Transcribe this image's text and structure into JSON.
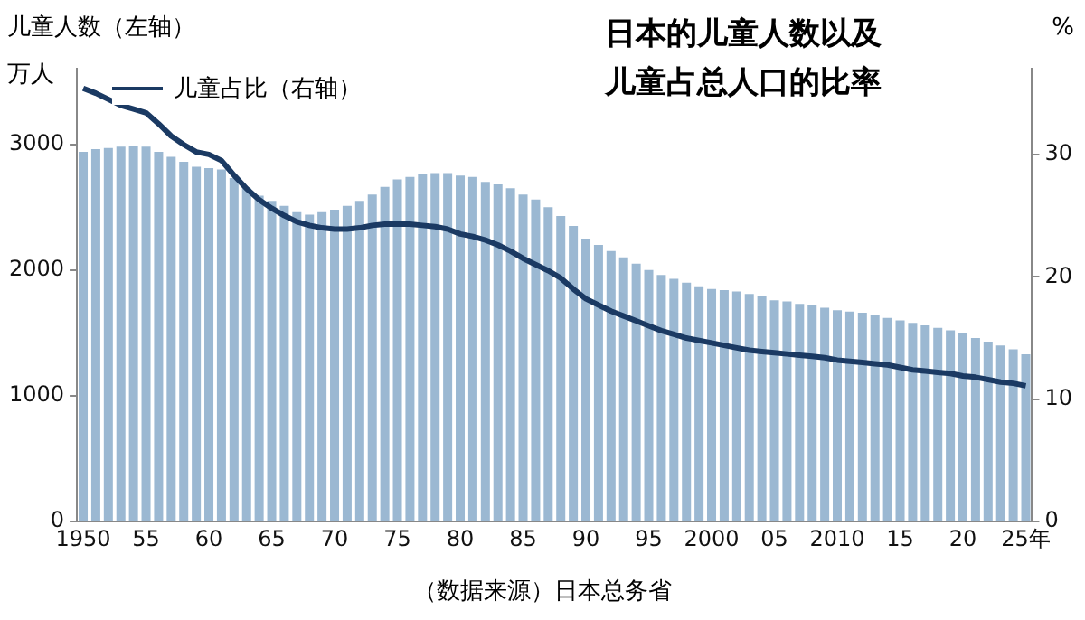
{
  "chart_data": {
    "type": "bar",
    "title": "日本的儿童人数以及儿童占总人口的比率",
    "ylabel": "儿童人数（左轴）",
    "y2label": "%",
    "annotations": [
      "万人",
      "（数据来源）日本总务省"
    ],
    "categories": [
      "1950",
      null,
      null,
      null,
      null,
      "55",
      null,
      null,
      null,
      null,
      "60",
      null,
      null,
      null,
      null,
      "65",
      null,
      null,
      null,
      null,
      "70",
      null,
      null,
      null,
      null,
      "75",
      null,
      null,
      null,
      null,
      "80",
      null,
      null,
      null,
      null,
      "85",
      null,
      null,
      null,
      null,
      "90",
      null,
      null,
      null,
      null,
      "95",
      null,
      null,
      null,
      null,
      "2000",
      null,
      null,
      null,
      null,
      "05",
      null,
      null,
      null,
      null,
      "2010",
      null,
      null,
      null,
      null,
      "15",
      null,
      null,
      null,
      null,
      "20",
      null,
      null,
      null,
      null,
      "25年"
    ],
    "series": [
      {
        "color": "#9bb8d2",
        "values": [
          2940,
          2960,
          2970,
          2980,
          2990,
          2980,
          2940,
          2900,
          2860,
          2820,
          2810,
          2800,
          2730,
          2650,
          2590,
          2550,
          2510,
          2460,
          2440,
          2460,
          2480,
          2510,
          2550,
          2600,
          2660,
          2720,
          2740,
          2760,
          2770,
          2770,
          2750,
          2740,
          2700,
          2680,
          2650,
          2600,
          2560,
          2500,
          2430,
          2350,
          2250,
          2200,
          2150,
          2100,
          2050,
          2000,
          1960,
          1930,
          1900,
          1870,
          1850,
          1840,
          1830,
          1810,
          1790,
          1760,
          1750,
          1730,
          1720,
          1700,
          1680,
          1670,
          1660,
          1640,
          1620,
          1600,
          1580,
          1560,
          1540,
          1520,
          1500,
          1460,
          1430,
          1400,
          1370,
          1330
        ]
      },
      {
        "type": "line",
        "name": "儿童占比（右轴）",
        "color": "#1b3a63",
        "axis": "y2",
        "values": [
          35.4,
          35.0,
          34.5,
          34.0,
          33.7,
          33.4,
          32.5,
          31.5,
          30.8,
          30.2,
          30.0,
          29.5,
          28.3,
          27.2,
          26.3,
          25.6,
          25.0,
          24.5,
          24.2,
          24.0,
          23.9,
          23.9,
          24.0,
          24.2,
          24.3,
          24.3,
          24.3,
          24.2,
          24.1,
          23.9,
          23.5,
          23.3,
          23.0,
          22.6,
          22.1,
          21.5,
          21.0,
          20.5,
          19.9,
          19.0,
          18.2,
          17.7,
          17.2,
          16.8,
          16.4,
          16.0,
          15.6,
          15.3,
          15.0,
          14.8,
          14.6,
          14.4,
          14.2,
          14.0,
          13.9,
          13.8,
          13.7,
          13.6,
          13.5,
          13.4,
          13.2,
          13.1,
          13.0,
          12.9,
          12.8,
          12.6,
          12.4,
          12.3,
          12.2,
          12.1,
          11.9,
          11.8,
          11.6,
          11.4,
          11.3,
          11.1
        ]
      }
    ],
    "ylim": [
      0,
      3600
    ],
    "yticks": [
      0,
      1000,
      2000,
      3000
    ],
    "y2lim": [
      0,
      37
    ],
    "y2ticks": [
      0,
      10,
      20,
      30
    ],
    "grid": false,
    "legend": "top left",
    "marker": "none",
    "line_style": "solid"
  }
}
